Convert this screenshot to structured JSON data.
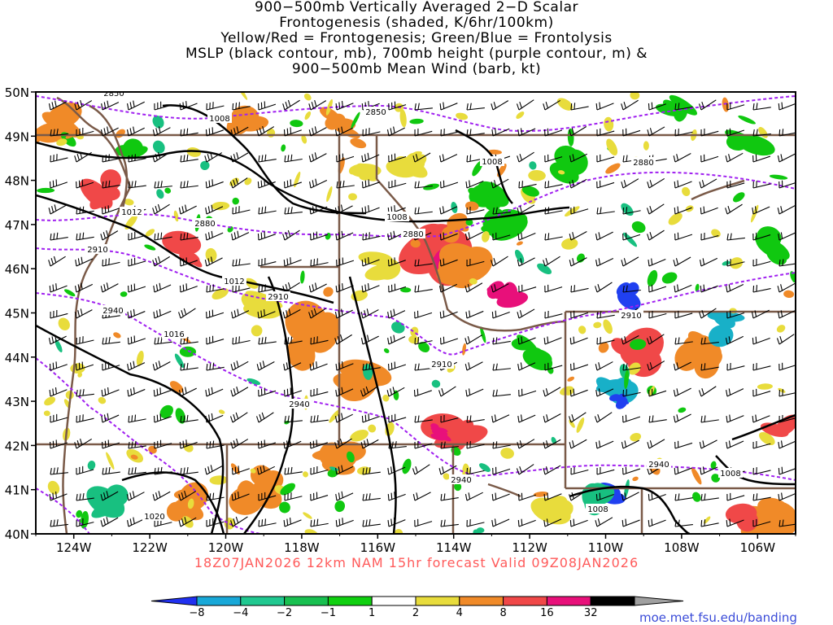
{
  "title": {
    "lines": [
      "900−500mb Vertically Averaged 2−D Scalar",
      "Frontogenesis (shaded, K/6hr/100km)",
      "Yellow/Red = Frontogenesis;  Green/Blue = Frontolysis",
      "MSLP (black contour, mb), 700mb height (purple contour, m) &",
      "900−500mb Mean Wind (barb, kt)"
    ]
  },
  "map": {
    "lat_labels": [
      "50N",
      "49N",
      "48N",
      "47N",
      "46N",
      "45N",
      "44N",
      "43N",
      "42N",
      "41N",
      "40N"
    ],
    "lon_labels": [
      "124W",
      "122W",
      "120W",
      "118W",
      "116W",
      "114W",
      "112W",
      "110W",
      "108W",
      "106W"
    ],
    "lat_range": [
      40,
      50
    ],
    "lon_range": [
      -125,
      -105
    ],
    "mslp_contour_labels": [
      "1008",
      "1008",
      "1008",
      "1012",
      "1012",
      "1016",
      "1020",
      "1008",
      "1008",
      "1008"
    ],
    "height_contour_labels": [
      "2850",
      "2850",
      "2880",
      "2880",
      "2880",
      "2910",
      "2910",
      "2910",
      "2910",
      "2940",
      "2940",
      "2940",
      "2940"
    ],
    "colors": {
      "mslp": "#000000",
      "height": "#a020f0",
      "borders": "#7a5a48",
      "frontogenesis_1": "#e8dc3c",
      "frontogenesis_2": "#f08a28",
      "frontogenesis_4": "#f04848",
      "frontogenesis_8": "#e8107a",
      "frontolysis_1": "#10c810",
      "frontolysis_2": "#18c080",
      "frontolysis_4": "#18b0c8",
      "frontolysis_8": "#2040f0"
    }
  },
  "colorbar": {
    "labels": [
      "−8",
      "−4",
      "−2",
      "−1",
      "1",
      "2",
      "4",
      "8",
      "16",
      "32"
    ],
    "colors": [
      "#2030f0",
      "#18a8d8",
      "#20c890",
      "#18c050",
      "#10d010",
      "#ffffff",
      "#e8dc3c",
      "#f08a28",
      "#f04848",
      "#e8107a",
      "#000000",
      "#a0a0a0"
    ]
  },
  "footer": {
    "run_text": "18Z07JAN2026  12km  NAM  15hr  forecast  Valid  09Z08JAN2026",
    "credit": "moe.met.fsu.edu/banding"
  }
}
